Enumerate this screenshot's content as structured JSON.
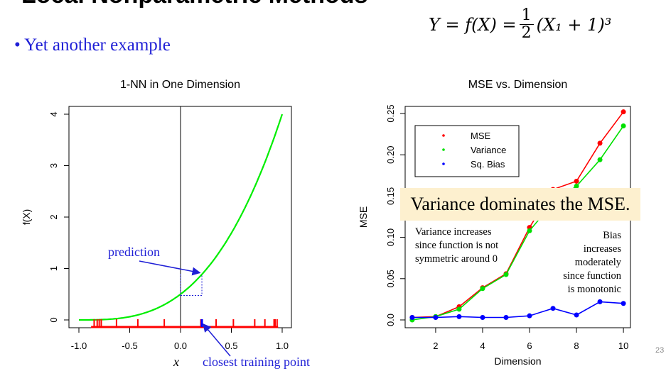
{
  "slide": {
    "title": "Local Nonparametric Methods",
    "bullet": "• Yet another example",
    "formula_lhs": "Y = f(X) =",
    "formula_num": "1",
    "formula_den": "2",
    "formula_rhs": "(X₁ + 1)³",
    "page_number": "23"
  },
  "callout": "Variance dominates the MSE.",
  "annotations": {
    "variance_note": [
      "Variance increases",
      "since function is not",
      "symmetric around 0"
    ],
    "bias_note": [
      "Bias",
      "increases",
      "moderately",
      "since function",
      "is monotonic"
    ],
    "prediction": "prediction",
    "closest_point": "closest training point",
    "x_symbol": "x"
  },
  "colors": {
    "mse": "#ff0000",
    "variance": "#00e000",
    "bias": "#0000ff",
    "curve": "#00ee00",
    "rug": "#ff0000",
    "annotation_blue": "#1f1fd6"
  },
  "chart_data": [
    {
      "type": "line",
      "title": "1-NN in One Dimension",
      "xlabel": "",
      "ylabel": "f(X)",
      "xlim": [
        -1.0,
        1.0
      ],
      "ylim": [
        0,
        4
      ],
      "xticks": [
        -1.0,
        -0.5,
        0.0,
        0.5,
        1.0
      ],
      "xtick_labels": [
        "-1.0",
        "-0.5",
        "0.0",
        "0.5",
        "1.0"
      ],
      "yticks": [
        0,
        1,
        2,
        3,
        4
      ],
      "ytick_labels": [
        "0",
        "1",
        "2",
        "3",
        "4"
      ],
      "curve": "f(x) = 0.5*(x+1)^3",
      "query_x": 0.0,
      "prediction": {
        "x": 0.21,
        "y": 0.89
      },
      "training_points_x": [
        -0.85,
        -0.82,
        -0.8,
        -0.78,
        -0.63,
        -0.42,
        -0.16,
        0.2,
        0.35,
        0.52,
        0.73,
        0.83,
        0.92,
        0.93,
        0.95
      ]
    },
    {
      "type": "line",
      "title": "MSE  vs. Dimension",
      "xlabel": "Dimension",
      "ylabel": "MSE",
      "xlim": [
        0.7,
        10.3
      ],
      "ylim": [
        -0.003,
        0.265
      ],
      "xticks": [
        2,
        4,
        6,
        8,
        10
      ],
      "xtick_labels": [
        "2",
        "4",
        "6",
        "8",
        "10"
      ],
      "yticks": [
        0.0,
        0.05,
        0.1,
        0.15,
        0.2,
        0.25
      ],
      "ytick_labels": [
        "0.0",
        "0.05",
        "0.10",
        "0.15",
        "0.20",
        "0.25"
      ],
      "legend": [
        "MSE",
        "Variance",
        "Sq. Bias"
      ],
      "x": [
        1,
        2,
        3,
        4,
        5,
        6,
        7,
        8,
        9,
        10
      ],
      "series": [
        {
          "name": "MSE",
          "color": "#ff0000",
          "values": [
            0.003,
            0.004,
            0.016,
            0.039,
            0.056,
            0.112,
            0.158,
            0.168,
            0.214,
            0.252
          ]
        },
        {
          "name": "Variance",
          "color": "#00e000",
          "values": [
            0.0,
            0.004,
            0.013,
            0.038,
            0.055,
            0.108,
            0.142,
            0.162,
            0.194,
            0.235
          ]
        },
        {
          "name": "Sq. Bias",
          "color": "#0000ff",
          "values": [
            0.003,
            0.003,
            0.004,
            0.003,
            0.003,
            0.005,
            0.014,
            0.006,
            0.022,
            0.02
          ]
        }
      ]
    }
  ]
}
